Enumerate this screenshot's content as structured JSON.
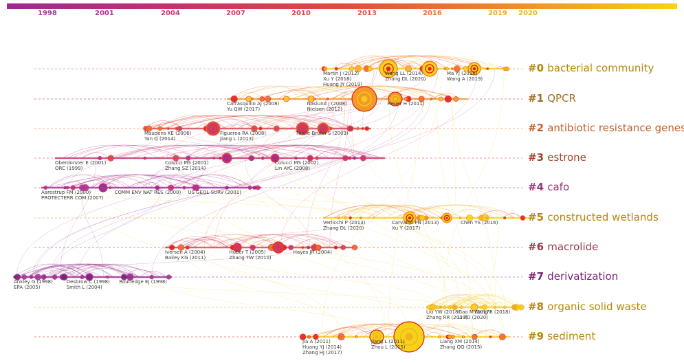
{
  "timeline": {
    "years": [
      "1998",
      "2001",
      "2004",
      "2007",
      "2010",
      "2013",
      "2016",
      "2019",
      "2020"
    ],
    "colors": [
      "#a03a99",
      "#b0358f",
      "#c23a7c",
      "#cf3d62",
      "#d9424c",
      "#e2503a",
      "#ea6d2f",
      "#f0a925",
      "#f2b320"
    ]
  },
  "clusters": [
    {
      "id": "#0",
      "name": "bacterial community",
      "color": "#b8860b",
      "authors": [
        "Martin J (2012)",
        "Wang LL (2014)",
        "Ma YJ (2016)",
        "Xu Y (2018)",
        "Zhang DL (2020)",
        "Wang A (2019)",
        "Huang JY (2019)"
      ]
    },
    {
      "id": "#1",
      "name": "QPCR",
      "color": "#a07020",
      "authors": [
        "Carrasquillo AJ (2008)",
        "Naslund J (2008)",
        "Heuer H (2011)",
        "Yu QW (2017)",
        "Nielsen (2012)"
      ]
    },
    {
      "id": "#2",
      "name": "antibiotic resistance genes",
      "color": "#c0602a",
      "authors": [
        "Maudens KE (2006)",
        "Figueroa RA (2008)",
        "Thiele-Bruhn S (2003)",
        "Yan Q (2014)",
        "Jiang L (2013)"
      ]
    },
    {
      "id": "#3",
      "name": "estrone",
      "color": "#a8402a",
      "authors": [
        "Oberdorster E (2001)",
        "Colucci MS (2001)",
        "Colucci MS (2002)",
        "ORC (1999)",
        "Zhang SZ (2014)",
        "Lin AYC (2008)"
      ]
    },
    {
      "id": "#4",
      "name": "cafo",
      "color": "#9a3575",
      "authors": [
        "Aarestrup FM (2000)",
        "COMM ENV NAT RES (2000)",
        "US GEOL SURV (2001)",
        "PROTECTERR COM (2007)"
      ]
    },
    {
      "id": "#5",
      "name": "constructed wetlands",
      "color": "#b8860b",
      "authors": [
        "Verlicchi P (2013)",
        "Carvalho PN (2013)",
        "Chen YS (2016)",
        "Zhang DL (2020)",
        "Xu Y (2017)"
      ]
    },
    {
      "id": "#6",
      "name": "macrolide",
      "color": "#9a3a4a",
      "authors": [
        "Iversen A (2004)",
        "Huber T (2005)",
        "Hayes JR (2004)",
        "Bailey KG (2011)",
        "Zhang TW (2010)"
      ]
    },
    {
      "id": "#7",
      "name": "derivatization",
      "color": "#7a1f78",
      "authors": [
        "Ankley G (1998)",
        "Desbrow C (1998)",
        "Routledge EJ (1998)",
        "EPA (2005)",
        "Smith L (2004)"
      ]
    },
    {
      "id": "#8",
      "name": "organic solid waste",
      "color": "#b8860b",
      "authors": [
        "Liu YW (2018)",
        "Gao M (2017)",
        "Wang R (2018)",
        "Zhang RR (2019)",
        "Li TD (2020)"
      ]
    },
    {
      "id": "#9",
      "name": "sediment",
      "color": "#b8860b",
      "authors": [
        "Jia A (2011)",
        "Jiang L (2011)",
        "Liang XM (2014)",
        "Huang YJ (2014)",
        "Zhou L (2015)",
        "Zhang QQ (2015)",
        "Zhang HJ (2017)"
      ]
    }
  ]
}
